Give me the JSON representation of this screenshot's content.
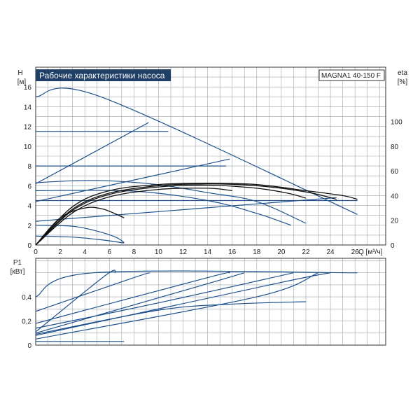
{
  "colors": {
    "curve": "#1c4f8c",
    "efficiency": "#111111",
    "grid": "#9aa3ad",
    "frame": "#333333",
    "title_bg": "#1f3f66"
  },
  "chart_data": [
    {
      "type": "line",
      "title": "Рабочие характеристики насоса",
      "model": "MAGNA1 40-150 F",
      "xlabel": "Q [м³/ч]",
      "ylabel_top": "H",
      "ylabel_unit": "[м]",
      "y2label_top": "eta",
      "y2label_unit": "[%]",
      "xlim": [
        0,
        28.5
      ],
      "ylim": [
        0,
        18
      ],
      "y2lim": [
        0,
        144
      ],
      "grid": true,
      "x_ticks": [
        "0",
        "2",
        "4",
        "6",
        "8",
        "10",
        "12",
        "14",
        "16",
        "18",
        "20",
        "22",
        "24",
        "26"
      ],
      "y_ticks": [
        "0",
        "2",
        "4",
        "6",
        "8",
        "10",
        "12",
        "14",
        "16"
      ],
      "y2_ticks": [
        "0",
        "20",
        "40",
        "60",
        "80",
        "100"
      ],
      "series": [
        {
          "kind": "head",
          "points": [
            [
              0,
              15
            ],
            [
              5.3,
              15
            ],
            [
              26.2,
              3.1
            ]
          ]
        },
        {
          "kind": "head",
          "points": [
            [
              0,
              11.5
            ],
            [
              10.8,
              11.5
            ]
          ]
        },
        {
          "kind": "head",
          "points": [
            [
              0,
              8
            ],
            [
              15.5,
              8
            ]
          ]
        },
        {
          "kind": "head",
          "points": [
            [
              0,
              4.5
            ],
            [
              26.2,
              4.5
            ]
          ]
        },
        {
          "kind": "head",
          "points": [
            [
              0,
              6.2
            ],
            [
              9.2,
              12.4
            ]
          ]
        },
        {
          "kind": "head",
          "points": [
            [
              0,
              4.4
            ],
            [
              15.8,
              8.7
            ]
          ]
        },
        {
          "kind": "head",
          "points": [
            [
              0,
              2.4
            ],
            [
              24.5,
              4.8
            ]
          ]
        },
        {
          "kind": "head",
          "points": [
            [
              0,
              6.3
            ],
            [
              3,
              6.5
            ],
            [
              6,
              6.5
            ],
            [
              10,
              6.1
            ],
            [
              14,
              5.3
            ],
            [
              18,
              4.4
            ],
            [
              22,
              2.2
            ]
          ]
        },
        {
          "kind": "head",
          "points": [
            [
              0,
              5.5
            ],
            [
              8,
              5.45
            ],
            [
              14,
              4.5
            ],
            [
              18,
              3.2
            ],
            [
              20.8,
              2.0
            ]
          ]
        },
        {
          "kind": "head",
          "points": [
            [
              0,
              2.0
            ],
            [
              3,
              1.9
            ],
            [
              5,
              1.4
            ],
            [
              6.5,
              0.8
            ],
            [
              7.2,
              0.25
            ]
          ]
        },
        {
          "kind": "head",
          "points": [
            [
              0,
              0.9
            ],
            [
              3,
              0.8
            ],
            [
              5.5,
              0.5
            ],
            [
              7.2,
              0.2
            ]
          ]
        },
        {
          "kind": "efficiency",
          "points": [
            [
              0,
              0
            ],
            [
              3,
              28
            ],
            [
              6,
              41
            ],
            [
              10,
              47
            ],
            [
              14,
              48.5
            ],
            [
              18,
              46
            ],
            [
              20.5,
              42
            ],
            [
              22,
              38
            ]
          ]
        },
        {
          "kind": "efficiency",
          "points": [
            [
              0,
              0
            ],
            [
              3,
              29
            ],
            [
              6,
              42
            ],
            [
              10,
              48
            ],
            [
              14,
              49.5
            ],
            [
              18,
              48
            ],
            [
              22,
              43
            ],
            [
              24.5,
              37
            ]
          ]
        },
        {
          "kind": "efficiency",
          "points": [
            [
              0,
              0
            ],
            [
              3,
              31
            ],
            [
              6,
              44
            ],
            [
              10,
              49
            ],
            [
              14,
              50
            ],
            [
              18,
              49
            ],
            [
              22,
              44
            ],
            [
              25,
              40
            ],
            [
              26.2,
              37
            ]
          ]
        },
        {
          "kind": "efficiency",
          "points": [
            [
              0,
              0
            ],
            [
              2,
              22
            ],
            [
              4,
              30
            ],
            [
              5.5,
              29
            ],
            [
              7.2,
              22
            ]
          ]
        },
        {
          "kind": "efficiency",
          "points": [
            [
              0,
              0
            ],
            [
              3,
              26
            ],
            [
              6,
              39
            ],
            [
              10,
              45
            ],
            [
              14,
              46
            ],
            [
              16,
              44
            ]
          ]
        }
      ]
    },
    {
      "type": "line",
      "ylabel_top": "P1",
      "ylabel_unit": "[кВт]",
      "xlim": [
        0,
        28.5
      ],
      "ylim": [
        0,
        0.72
      ],
      "grid": true,
      "y_ticks": [
        "0",
        "0,2",
        "0,4"
      ],
      "series": [
        {
          "points": [
            [
              0,
              0.4
            ],
            [
              4.7,
              0.6
            ],
            [
              26.2,
              0.6
            ]
          ]
        },
        {
          "points": [
            [
              0,
              0.28
            ],
            [
              8,
              0.56
            ],
            [
              9.3,
              0.6
            ]
          ]
        },
        {
          "points": [
            [
              0,
              0.18
            ],
            [
              14,
              0.56
            ],
            [
              15.8,
              0.6
            ]
          ]
        },
        {
          "points": [
            [
              0,
              0.11
            ],
            [
              5.7,
              0.58
            ],
            [
              6.5,
              0.6
            ]
          ]
        },
        {
          "points": [
            [
              0,
              0.1
            ],
            [
              13,
              0.48
            ],
            [
              17,
              0.6
            ]
          ]
        },
        {
          "points": [
            [
              0,
              0.14
            ],
            [
              10,
              0.35
            ],
            [
              21,
              0.6
            ]
          ]
        },
        {
          "points": [
            [
              0,
              0.08
            ],
            [
              20,
              0.52
            ],
            [
              24,
              0.6
            ]
          ]
        },
        {
          "points": [
            [
              0,
              0.05
            ],
            [
              18,
              0.4
            ],
            [
              23,
              0.6
            ]
          ]
        },
        {
          "points": [
            [
              0,
              0.09
            ],
            [
              10,
              0.29
            ],
            [
              16,
              0.34
            ],
            [
              22,
              0.36
            ]
          ]
        },
        {
          "points": [
            [
              0,
              0.03
            ],
            [
              7.2,
              0.03
            ]
          ]
        }
      ]
    }
  ]
}
